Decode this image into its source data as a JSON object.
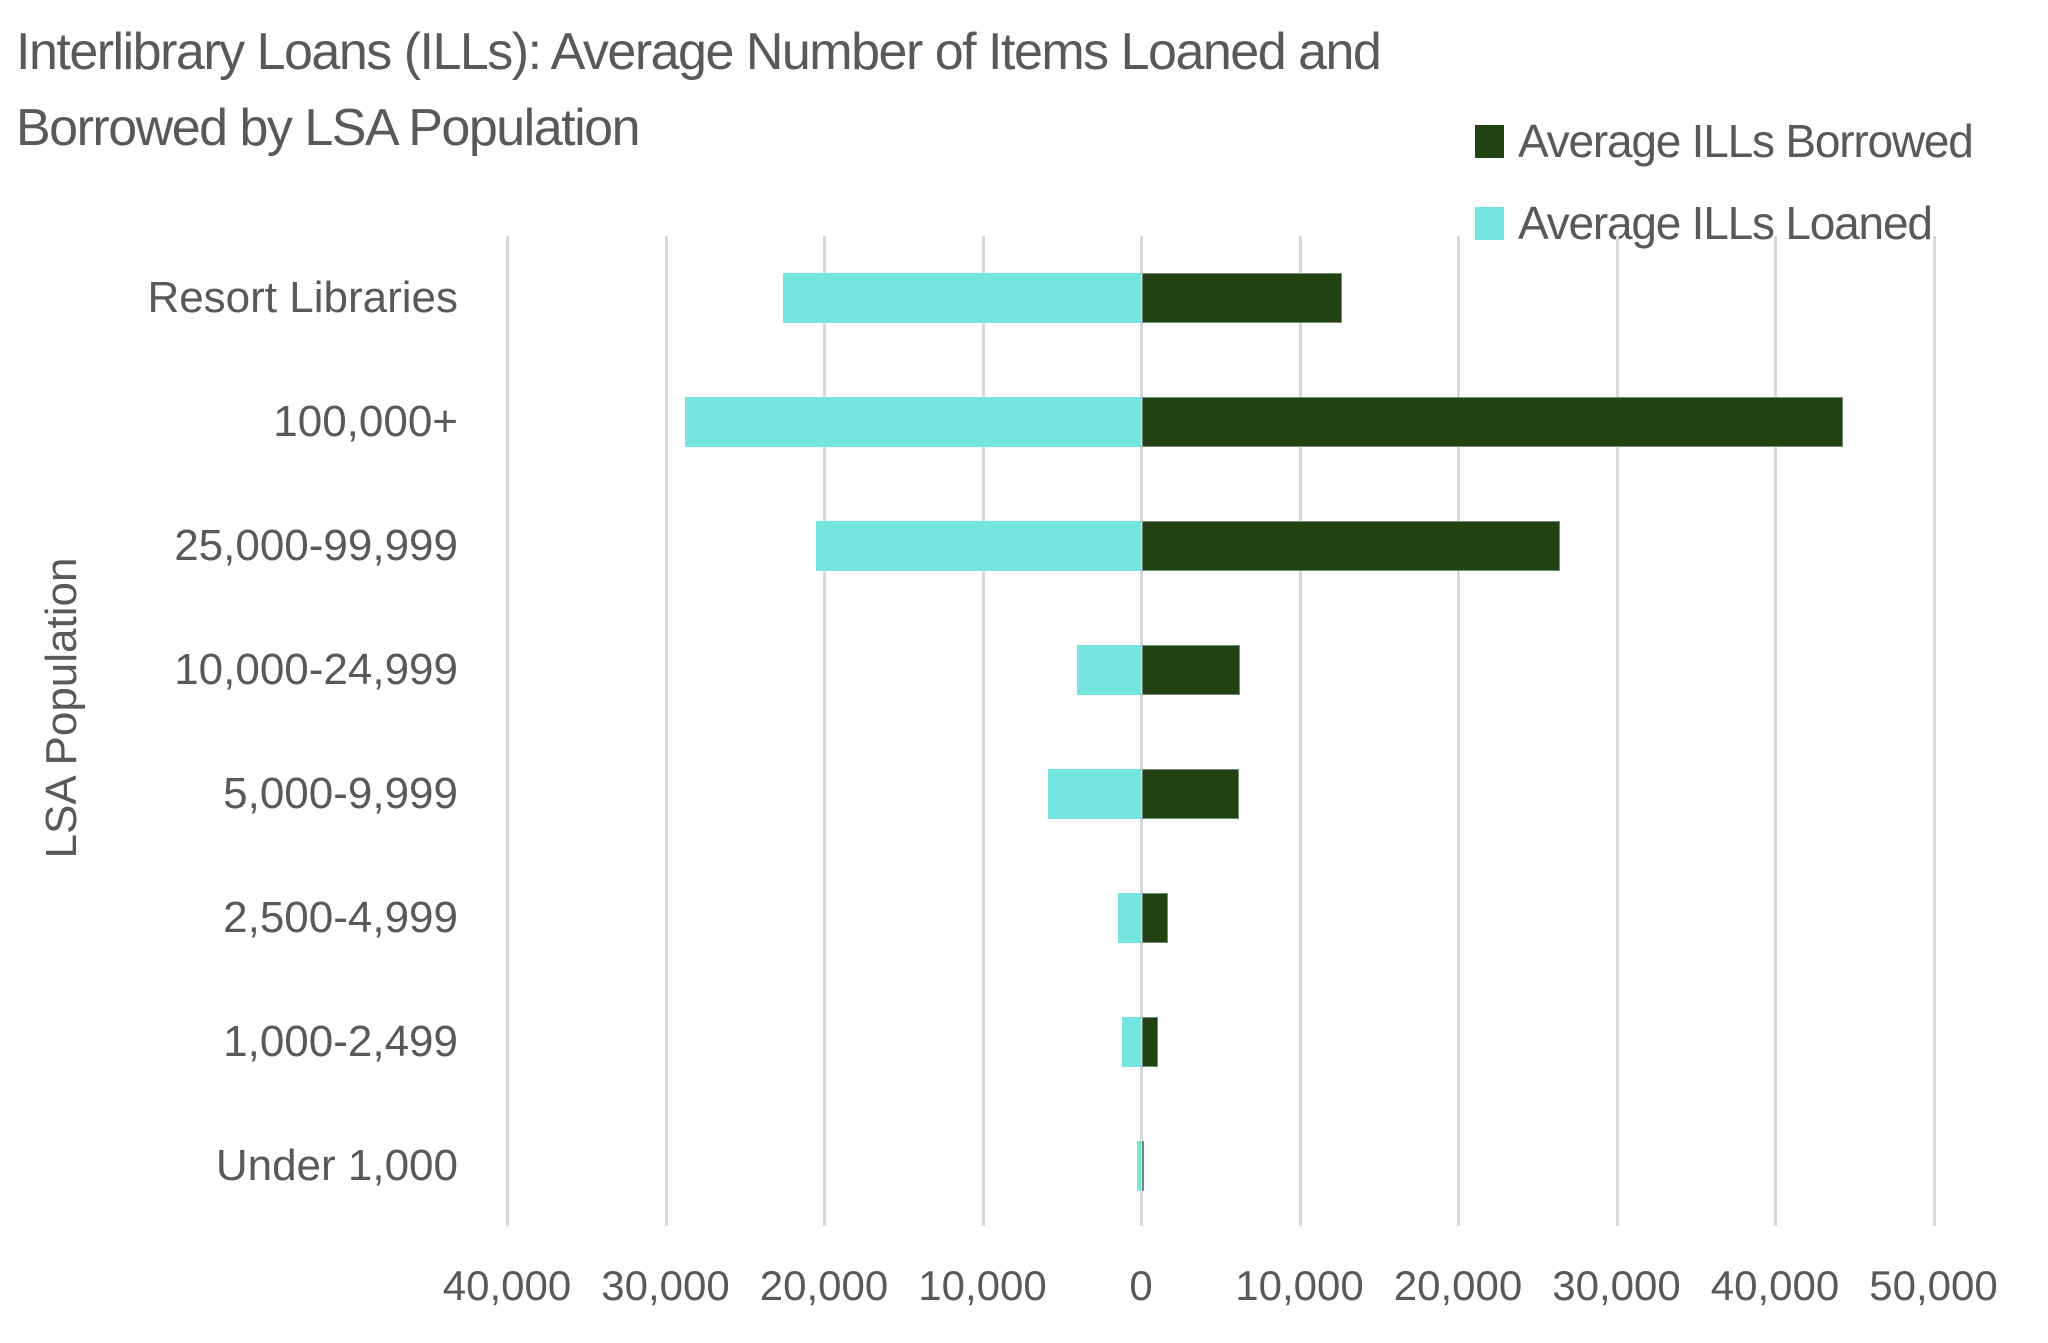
{
  "chart_data": {
    "type": "bar",
    "orientation": "horizontal",
    "layout": "diverging",
    "title": "Interlibrary Loans (ILLs): Average Number of Items Loaned and Borrowed by LSA Population",
    "title_lines": [
      "Interlibrary Loans (ILLs): Average Number of Items Loaned and",
      "Borrowed by LSA Population"
    ],
    "xlabel": "",
    "ylabel": "LSA Population",
    "categories": [
      "Resort Libraries",
      "100,000+",
      "25,000-99,999",
      "10,000-24,999",
      "5,000-9,999",
      "2,500-4,999",
      "1,000-2,499",
      "Under 1,000"
    ],
    "series": [
      {
        "name": "Average ILLs Borrowed",
        "color": "#214213",
        "direction": "right",
        "values": [
          12600,
          44200,
          26400,
          6200,
          6100,
          1650,
          1000,
          150
        ]
      },
      {
        "name": "Average ILLs Loaned",
        "color": "#75e5e0",
        "direction": "left",
        "values": [
          22600,
          28800,
          20500,
          4050,
          5850,
          1450,
          1200,
          250
        ]
      }
    ],
    "xlim": [
      -40000,
      50000
    ],
    "x_ticks": [
      -40000,
      -30000,
      -20000,
      -10000,
      0,
      10000,
      20000,
      30000,
      40000,
      50000
    ],
    "x_tick_labels": [
      "40,000",
      "30,000",
      "20,000",
      "10,000",
      "0",
      "10,000",
      "20,000",
      "30,000",
      "40,000",
      "50,000"
    ],
    "grid": "vertical",
    "legend_position": "top-right"
  },
  "legend": [
    {
      "label": "Average ILLs Borrowed",
      "color": "#214213"
    },
    {
      "label": "Average ILLs Loaned",
      "color": "#75e5e0"
    }
  ]
}
